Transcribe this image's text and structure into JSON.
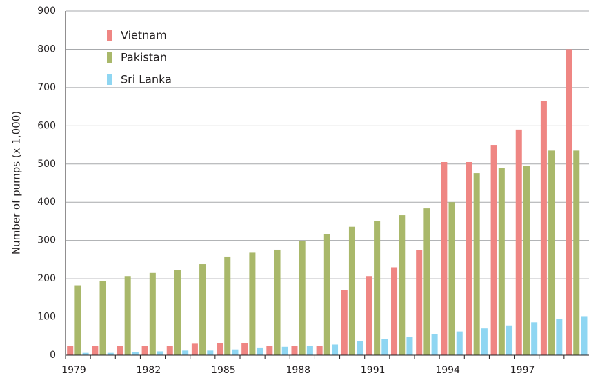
{
  "chart_data": {
    "type": "bar",
    "y_label": "Number of pumps (x 1,000)",
    "categories": [
      "1979",
      null,
      null,
      "1982",
      null,
      null,
      "1985",
      null,
      null,
      "1988",
      null,
      null,
      "1991",
      null,
      null,
      "1994",
      null,
      null,
      "1997",
      null,
      null
    ],
    "series": [
      {
        "name": "Vietnam",
        "color": "#ef8683",
        "values": [
          25,
          25,
          25,
          25,
          25,
          30,
          32,
          32,
          24,
          24,
          24,
          170,
          207,
          230,
          275,
          505,
          505,
          550,
          590,
          665,
          800
        ]
      },
      {
        "name": "Pakistan",
        "color": "#a9b86a",
        "values": [
          183,
          193,
          207,
          215,
          222,
          238,
          258,
          268,
          276,
          298,
          316,
          336,
          350,
          366,
          384,
          400,
          476,
          490,
          495,
          535,
          535
        ]
      },
      {
        "name": "Sri Lanka",
        "color": "#8fd6f2",
        "values": [
          6,
          6,
          8,
          10,
          12,
          12,
          15,
          20,
          22,
          25,
          28,
          37,
          42,
          48,
          55,
          62,
          70,
          78,
          86,
          95,
          102
        ]
      }
    ],
    "ylim": [
      0,
      900
    ],
    "yticks": [
      0,
      100,
      200,
      300,
      400,
      500,
      600,
      700,
      800,
      900
    ],
    "grid": true,
    "legend": "top-left"
  }
}
